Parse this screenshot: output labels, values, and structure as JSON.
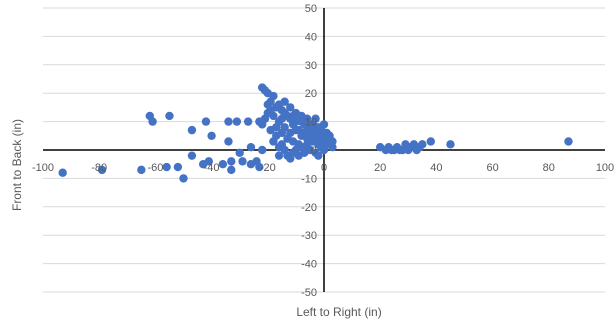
{
  "chart_data": {
    "type": "scatter",
    "xlabel": "Left to Right (in)",
    "ylabel": "Front to Back (in)",
    "xlim": [
      -100,
      100
    ],
    "ylim": [
      -50,
      50
    ],
    "x_ticks": [
      -100,
      -80,
      -60,
      -40,
      -20,
      0,
      20,
      40,
      60,
      80,
      100
    ],
    "y_ticks": [
      -50,
      -40,
      -30,
      -20,
      -10,
      0,
      10,
      20,
      30,
      40,
      50
    ],
    "x_tick_labels": [
      "-100",
      "-80",
      "-60",
      "-40",
      "-20",
      "0",
      "20",
      "40",
      "60",
      "80",
      "100"
    ],
    "y_tick_labels": [
      "-50",
      "-40",
      "-30",
      "-20",
      "-10",
      "0",
      "10",
      "20",
      "30",
      "40",
      "50"
    ],
    "grid": "horizontal",
    "marker_color": "#4472c4",
    "series": [
      {
        "points": [
          [
            -93,
            -8
          ],
          [
            -79,
            -7
          ],
          [
            -65,
            -7
          ],
          [
            -62,
            12
          ],
          [
            -61,
            10
          ],
          [
            -56,
            -6
          ],
          [
            -55,
            12
          ],
          [
            -52,
            -6
          ],
          [
            -50,
            -10
          ],
          [
            -47,
            7
          ],
          [
            -47,
            -2
          ],
          [
            -43,
            -5
          ],
          [
            -42,
            10
          ],
          [
            -41,
            -4
          ],
          [
            -40,
            5
          ],
          [
            -36,
            -5
          ],
          [
            -34,
            10
          ],
          [
            -34,
            3
          ],
          [
            -33,
            -4
          ],
          [
            -33,
            -7
          ],
          [
            -31,
            10
          ],
          [
            -30,
            -1
          ],
          [
            -29,
            -4
          ],
          [
            -27,
            10
          ],
          [
            -26,
            1
          ],
          [
            -26,
            -5
          ],
          [
            -24,
            -4
          ],
          [
            -23,
            -6
          ],
          [
            -22,
            0
          ],
          [
            -22,
            22
          ],
          [
            -21,
            21
          ],
          [
            -20,
            20
          ],
          [
            -19,
            17
          ],
          [
            -18,
            19
          ],
          [
            -17,
            15
          ],
          [
            -16,
            16
          ],
          [
            -15,
            14
          ],
          [
            -14,
            13
          ],
          [
            -13,
            12
          ],
          [
            -12,
            11
          ],
          [
            -11,
            12
          ],
          [
            -10,
            10
          ],
          [
            -9,
            11
          ],
          [
            -8,
            10
          ],
          [
            -7,
            9
          ],
          [
            -6,
            8
          ],
          [
            -5,
            9
          ],
          [
            -4,
            7
          ],
          [
            -3,
            6
          ],
          [
            -2,
            5
          ],
          [
            -1,
            4
          ],
          [
            0,
            5
          ],
          [
            1,
            3
          ],
          [
            2,
            2
          ],
          [
            3,
            1
          ],
          [
            -23,
            10
          ],
          [
            -22,
            9
          ],
          [
            -21,
            11
          ],
          [
            -20,
            13
          ],
          [
            -18,
            12
          ],
          [
            -19,
            7
          ],
          [
            -17,
            8
          ],
          [
            -16,
            10
          ],
          [
            -15,
            6
          ],
          [
            -14,
            8
          ],
          [
            -13,
            4
          ],
          [
            -12,
            6
          ],
          [
            -11,
            3
          ],
          [
            -10,
            7
          ],
          [
            -9,
            2
          ],
          [
            -8,
            5
          ],
          [
            -7,
            1
          ],
          [
            -6,
            4
          ],
          [
            -5,
            0
          ],
          [
            -4,
            3
          ],
          [
            -3,
            -1
          ],
          [
            -2,
            2
          ],
          [
            -1,
            1
          ],
          [
            0,
            0
          ],
          [
            1,
            2
          ],
          [
            -15,
            2
          ],
          [
            -14,
            0
          ],
          [
            -13,
            -2
          ],
          [
            -12,
            -3
          ],
          [
            -11,
            -1
          ],
          [
            -10,
            0
          ],
          [
            -9,
            -2
          ],
          [
            -8,
            1
          ],
          [
            -7,
            -1
          ],
          [
            -6,
            2
          ],
          [
            -5,
            6
          ],
          [
            -4,
            9
          ],
          [
            -3,
            11
          ],
          [
            -2,
            8
          ],
          [
            -1,
            7
          ],
          [
            0,
            9
          ],
          [
            1,
            6
          ],
          [
            -18,
            3
          ],
          [
            -17,
            5
          ],
          [
            -16,
            1
          ],
          [
            -19,
            14
          ],
          [
            -20,
            16
          ],
          [
            -16,
            -2
          ],
          [
            -15,
            11
          ],
          [
            -14,
            17
          ],
          [
            -12,
            15
          ],
          [
            -11,
            9
          ],
          [
            -10,
            13
          ],
          [
            -9,
            7
          ],
          [
            -8,
            12
          ],
          [
            -7,
            6
          ],
          [
            -6,
            11
          ],
          [
            -5,
            3
          ],
          [
            -4,
            5
          ],
          [
            -3,
            4
          ],
          [
            -2,
            -2
          ],
          [
            0,
            3
          ],
          [
            2,
            5
          ],
          [
            3,
            3
          ],
          [
            20,
            1
          ],
          [
            22,
            0
          ],
          [
            23,
            1
          ],
          [
            24,
            0
          ],
          [
            25,
            0
          ],
          [
            26,
            1
          ],
          [
            27,
            0
          ],
          [
            28,
            0
          ],
          [
            29,
            2
          ],
          [
            30,
            0
          ],
          [
            31,
            1
          ],
          [
            32,
            2
          ],
          [
            33,
            0
          ],
          [
            34,
            1
          ],
          [
            35,
            2
          ],
          [
            38,
            3
          ],
          [
            45,
            2
          ],
          [
            87,
            3
          ]
        ]
      }
    ]
  }
}
